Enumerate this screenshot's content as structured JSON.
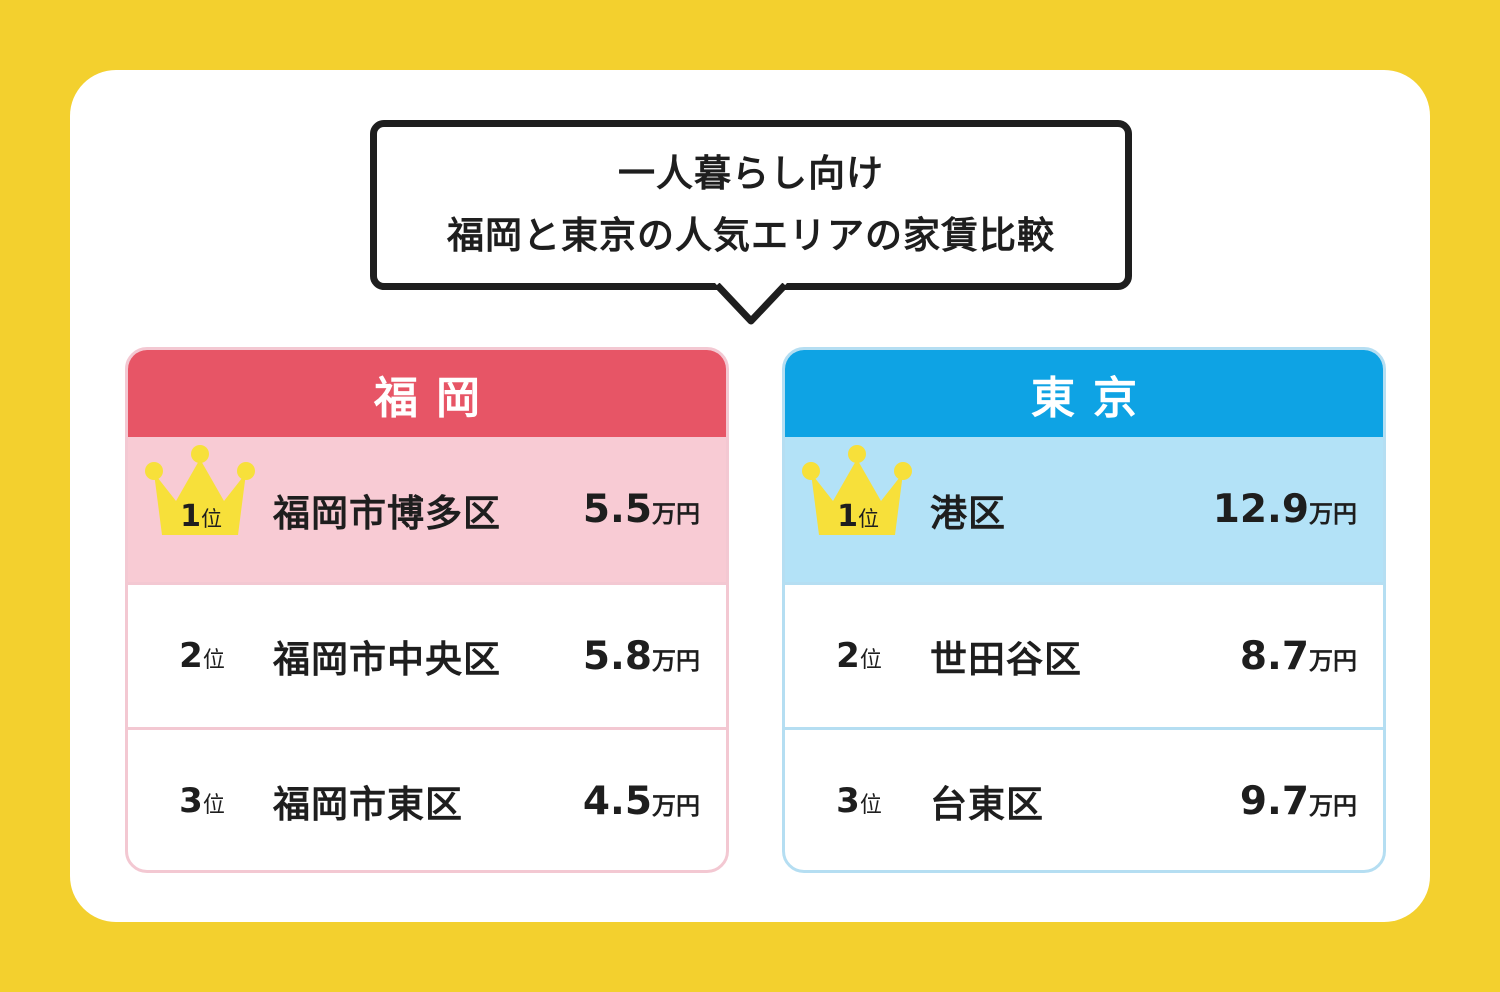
{
  "title": {
    "line1": "一人暮らし向け",
    "line2": "福岡と東京の人気エリアの家賃比較"
  },
  "rank_suffix": "位",
  "price_unit": "万円",
  "fukuoka": {
    "heading": "福岡",
    "accent_color": "#e75566",
    "rows": [
      {
        "rank": "1",
        "area": "福岡市博多区",
        "price": "5.5"
      },
      {
        "rank": "2",
        "area": "福岡市中央区",
        "price": "5.8"
      },
      {
        "rank": "3",
        "area": "福岡市東区",
        "price": "4.5"
      }
    ]
  },
  "tokyo": {
    "heading": "東京",
    "accent_color": "#0ea3e4",
    "rows": [
      {
        "rank": "1",
        "area": "港区",
        "price": "12.9"
      },
      {
        "rank": "2",
        "area": "世田谷区",
        "price": "8.7"
      },
      {
        "rank": "3",
        "area": "台東区",
        "price": "9.7"
      }
    ]
  },
  "icons": {
    "first_place": "crown-icon"
  }
}
